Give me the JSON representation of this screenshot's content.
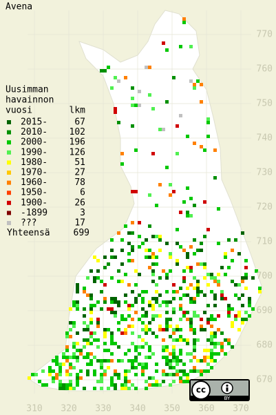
{
  "title": "Avena",
  "legend": {
    "header": [
      "Uusimman",
      "havainnon",
      "vuosi"
    ],
    "count_header": "lkm",
    "rows": [
      {
        "label": "2015-",
        "count": 67,
        "color": "#006400"
      },
      {
        "label": "2010-",
        "count": 102,
        "color": "#009000"
      },
      {
        "label": "2000-",
        "count": 196,
        "color": "#00c800"
      },
      {
        "label": "1990-",
        "count": 126,
        "color": "#50f050"
      },
      {
        "label": "1980-",
        "count": 51,
        "color": "#ffff00"
      },
      {
        "label": "1970-",
        "count": 27,
        "color": "#ffc800"
      },
      {
        "label": "1960-",
        "count": 78,
        "color": "#ff8000"
      },
      {
        "label": "1950-",
        "count": 6,
        "color": "#ff4000"
      },
      {
        "label": "1900-",
        "count": 26,
        "color": "#d00000"
      },
      {
        "label": "-1899",
        "count": 3,
        "color": "#800000"
      },
      {
        "label": "???",
        "count": 17,
        "color": "#c0c0c0"
      }
    ],
    "total_label": "Yhteensä",
    "total": 699
  },
  "xticks": [
    310,
    320,
    330,
    340,
    350,
    360,
    370
  ],
  "yticks": [
    670,
    680,
    690,
    700,
    710,
    720,
    730,
    740,
    750,
    760,
    770
  ],
  "license_badge": {
    "logo": "cc",
    "label": "BY"
  }
}
